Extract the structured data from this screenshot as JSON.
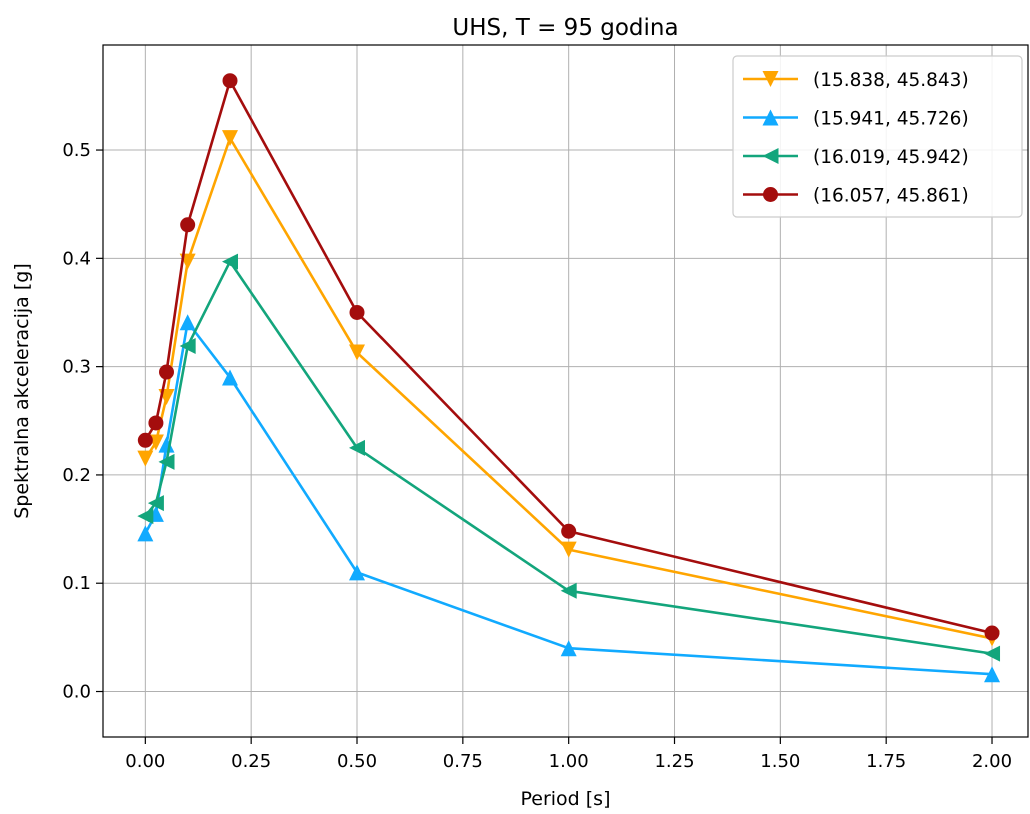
{
  "chart_data": {
    "type": "line",
    "title": "UHS, T = 95 godina",
    "xlabel": "Period [s]",
    "ylabel": "Spektralna akceleracija [g]",
    "xlim": [
      -0.1,
      2.085
    ],
    "ylim": [
      -0.042,
      0.597
    ],
    "xticks": [
      0.0,
      0.25,
      0.5,
      0.75,
      1.0,
      1.25,
      1.5,
      1.75,
      2.0
    ],
    "xtick_labels": [
      "0.00",
      "0.25",
      "0.50",
      "0.75",
      "1.00",
      "1.25",
      "1.50",
      "1.75",
      "2.00"
    ],
    "yticks": [
      0.0,
      0.1,
      0.2,
      0.3,
      0.4,
      0.5
    ],
    "ytick_labels": [
      "0.0",
      "0.1",
      "0.2",
      "0.3",
      "0.4",
      "0.5"
    ],
    "grid": true,
    "legend_position": "upper right",
    "x": [
      0.0,
      0.025,
      0.05,
      0.1,
      0.2,
      0.5,
      1.0,
      2.0
    ],
    "series": [
      {
        "name": "(15.838, 45.843)",
        "color": "#FFA500",
        "marker": "triangle-down",
        "values": [
          0.215,
          0.23,
          0.272,
          0.397,
          0.511,
          0.313,
          0.131,
          0.049
        ]
      },
      {
        "name": "(15.941, 45.726)",
        "color": "#11AAFF",
        "marker": "triangle-up",
        "values": [
          0.146,
          0.164,
          0.228,
          0.341,
          0.29,
          0.11,
          0.04,
          0.016
        ]
      },
      {
        "name": "(16.019, 45.942)",
        "color": "#13A57C",
        "marker": "triangle-left",
        "values": [
          0.162,
          0.174,
          0.212,
          0.319,
          0.397,
          0.225,
          0.093,
          0.035
        ]
      },
      {
        "name": "(16.057, 45.861)",
        "color": "#A40D0D",
        "marker": "circle",
        "values": [
          0.232,
          0.248,
          0.295,
          0.431,
          0.564,
          0.35,
          0.148,
          0.054
        ]
      }
    ]
  }
}
